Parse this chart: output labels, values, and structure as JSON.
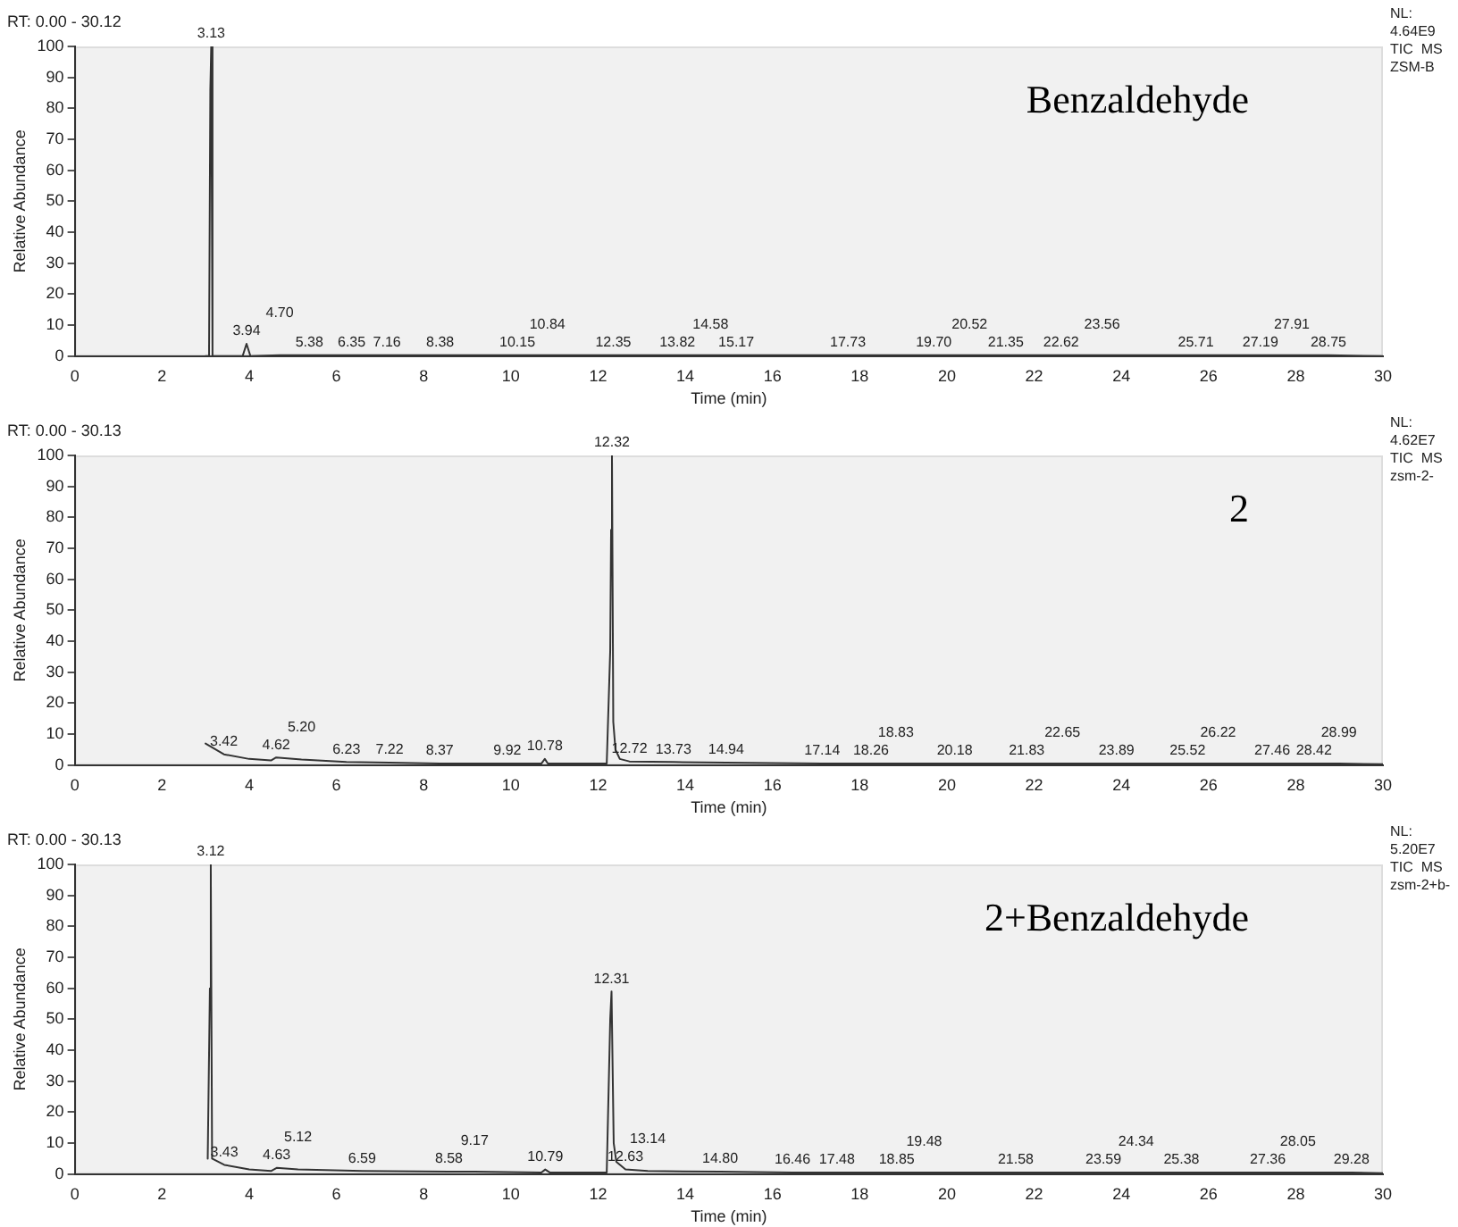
{
  "chart_data": [
    {
      "type": "line",
      "title": "Benzaldehyde",
      "xlabel": "Time (min)",
      "ylabel": "Relative Abundance",
      "xlim": [
        0,
        30
      ],
      "ylim": [
        0,
        100
      ],
      "xticks": [
        0,
        2,
        4,
        6,
        8,
        10,
        12,
        14,
        16,
        18,
        20,
        22,
        24,
        26,
        28,
        30
      ],
      "yticks": [
        0,
        10,
        20,
        30,
        40,
        50,
        60,
        70,
        80,
        90,
        100
      ],
      "grid": false,
      "legend": false,
      "marker": "none",
      "series": [
        {
          "color": "#333333",
          "x": [
            3.0,
            3.08,
            3.11,
            3.13,
            3.16,
            3.85,
            3.94,
            4.03,
            4.7,
            5.38,
            6.35,
            7.16,
            8.38,
            10.15,
            10.84,
            12.35,
            13.82,
            14.58,
            15.17,
            17.73,
            19.7,
            20.52,
            21.35,
            22.62,
            23.56,
            25.71,
            27.19,
            27.91,
            28.75,
            30
          ],
          "values": [
            0,
            0,
            86,
            100,
            0,
            0,
            4,
            0,
            0.3,
            0.3,
            0.3,
            0.3,
            0.3,
            0.3,
            0.3,
            0.3,
            0.3,
            0.3,
            0.3,
            0.3,
            0.3,
            0.3,
            0.3,
            0.3,
            0.3,
            0.3,
            0.3,
            0.3,
            0.3,
            0
          ]
        }
      ],
      "annotations": [
        "RT: 0.00 - 30.12",
        "NL:",
        "4.64E9",
        "TIC  MS",
        "ZSM-B",
        {
          "text": "3.13",
          "x": 3.13,
          "y": 100
        },
        {
          "text": "3.94",
          "x": 3.94,
          "y": 4
        },
        {
          "text": "4.70",
          "x": 4.7,
          "y": 0.3
        },
        {
          "text": "5.38",
          "x": 5.38,
          "y": 0.3
        },
        {
          "text": "6.35",
          "x": 6.35,
          "y": 0.3
        },
        {
          "text": "7.16",
          "x": 7.16,
          "y": 0.3
        },
        {
          "text": "8.38",
          "x": 8.38,
          "y": 0.3
        },
        {
          "text": "10.15",
          "x": 10.15,
          "y": 0.3
        },
        {
          "text": "10.84",
          "x": 10.84,
          "y": 0.3
        },
        {
          "text": "12.35",
          "x": 12.35,
          "y": 0.3
        },
        {
          "text": "13.82",
          "x": 13.82,
          "y": 0.3
        },
        {
          "text": "14.58",
          "x": 14.58,
          "y": 0.3
        },
        {
          "text": "15.17",
          "x": 15.17,
          "y": 0.3
        },
        {
          "text": "17.73",
          "x": 17.73,
          "y": 0.3
        },
        {
          "text": "19.70",
          "x": 19.7,
          "y": 0.3
        },
        {
          "text": "20.52",
          "x": 20.52,
          "y": 0.3
        },
        {
          "text": "21.35",
          "x": 21.35,
          "y": 0.3
        },
        {
          "text": "22.62",
          "x": 22.62,
          "y": 0.3
        },
        {
          "text": "23.56",
          "x": 23.56,
          "y": 0.3
        },
        {
          "text": "25.71",
          "x": 25.71,
          "y": 0.3
        },
        {
          "text": "27.19",
          "x": 27.19,
          "y": 0.3
        },
        {
          "text": "27.91",
          "x": 27.91,
          "y": 0.3
        },
        {
          "text": "28.75",
          "x": 28.75,
          "y": 0.3
        }
      ]
    },
    {
      "type": "line",
      "title": "2",
      "xlabel": "Time (min)",
      "ylabel": "Relative Abundance",
      "xlim": [
        0,
        30
      ],
      "ylim": [
        0,
        100
      ],
      "xticks": [
        0,
        2,
        4,
        6,
        8,
        10,
        12,
        14,
        16,
        18,
        20,
        22,
        24,
        26,
        28,
        30
      ],
      "yticks": [
        0,
        10,
        20,
        30,
        40,
        50,
        60,
        70,
        80,
        90,
        100
      ],
      "grid": false,
      "legend": false,
      "marker": "none",
      "series": [
        {
          "color": "#333333",
          "x": [
            3.0,
            3.42,
            4.0,
            4.5,
            4.62,
            5.2,
            6.23,
            7.22,
            8.37,
            9.92,
            10.7,
            10.78,
            10.85,
            12.2,
            12.28,
            12.3,
            12.32,
            12.35,
            12.4,
            12.5,
            12.72,
            13.73,
            14.94,
            17.14,
            18.26,
            18.83,
            20.18,
            21.83,
            22.65,
            23.89,
            25.52,
            26.22,
            27.46,
            28.42,
            28.99,
            30
          ],
          "values": [
            7,
            3.5,
            2,
            1.5,
            2.5,
            1.8,
            1,
            0.8,
            0.5,
            0.5,
            0.5,
            2,
            0.5,
            0.5,
            37,
            76,
            100,
            14,
            5,
            2,
            1.2,
            1,
            0.8,
            0.5,
            0.5,
            0.5,
            0.5,
            0.5,
            0.5,
            0.5,
            0.5,
            0.5,
            0.5,
            0.5,
            0.5,
            0.3
          ]
        }
      ],
      "annotations": [
        "RT: 0.00 - 30.13",
        "NL:",
        "4.62E7",
        "TIC  MS",
        "zsm-2-",
        {
          "text": "12.32",
          "x": 12.32,
          "y": 100
        },
        {
          "text": "3.42",
          "x": 3.42,
          "y": 3.5
        },
        {
          "text": "4.62",
          "x": 4.62,
          "y": 2.5
        },
        {
          "text": "5.20",
          "x": 5.2,
          "y": 1.8
        },
        {
          "text": "6.23",
          "x": 6.23,
          "y": 1
        },
        {
          "text": "7.22",
          "x": 7.22,
          "y": 0.8
        },
        {
          "text": "8.37",
          "x": 8.37,
          "y": 0.5
        },
        {
          "text": "9.92",
          "x": 9.92,
          "y": 0.5
        },
        {
          "text": "10.78",
          "x": 10.78,
          "y": 2
        },
        {
          "text": "12.72",
          "x": 12.72,
          "y": 1.2
        },
        {
          "text": "13.73",
          "x": 13.73,
          "y": 1
        },
        {
          "text": "14.94",
          "x": 14.94,
          "y": 0.8
        },
        {
          "text": "17.14",
          "x": 17.14,
          "y": 0.5
        },
        {
          "text": "18.26",
          "x": 18.26,
          "y": 0.5
        },
        {
          "text": "18.83",
          "x": 18.83,
          "y": 0.5
        },
        {
          "text": "20.18",
          "x": 20.18,
          "y": 0.5
        },
        {
          "text": "21.83",
          "x": 21.83,
          "y": 0.5
        },
        {
          "text": "22.65",
          "x": 22.65,
          "y": 0.5
        },
        {
          "text": "23.89",
          "x": 23.89,
          "y": 0.5
        },
        {
          "text": "25.52",
          "x": 25.52,
          "y": 0.5
        },
        {
          "text": "26.22",
          "x": 26.22,
          "y": 0.5
        },
        {
          "text": "27.46",
          "x": 27.46,
          "y": 0.5
        },
        {
          "text": "28.42",
          "x": 28.42,
          "y": 0.5
        },
        {
          "text": "28.99",
          "x": 28.99,
          "y": 0.5
        }
      ]
    },
    {
      "type": "line",
      "title": "2+Benzaldehyde",
      "xlabel": "Time (min)",
      "ylabel": "Relative Abundance",
      "xlim": [
        0,
        30
      ],
      "ylim": [
        0,
        100
      ],
      "xticks": [
        0,
        2,
        4,
        6,
        8,
        10,
        12,
        14,
        16,
        18,
        20,
        22,
        24,
        26,
        28,
        30
      ],
      "yticks": [
        0,
        10,
        20,
        30,
        40,
        50,
        60,
        70,
        80,
        90,
        100
      ],
      "grid": false,
      "legend": false,
      "marker": "none",
      "series": [
        {
          "color": "#333333",
          "x": [
            3.05,
            3.1,
            3.12,
            3.15,
            3.43,
            4.0,
            4.5,
            4.63,
            5.12,
            6.59,
            8.58,
            9.17,
            10.7,
            10.79,
            10.9,
            12.2,
            12.28,
            12.31,
            12.36,
            12.42,
            12.63,
            13.14,
            14.8,
            16.46,
            17.48,
            18.85,
            19.48,
            21.58,
            23.59,
            24.34,
            25.38,
            27.36,
            28.05,
            29.28,
            30
          ],
          "values": [
            5,
            60,
            100,
            5,
            3,
            1.5,
            1,
            2,
            1.5,
            1,
            0.8,
            0.8,
            0.5,
            1.5,
            0.5,
            0.5,
            50,
            59,
            10,
            4,
            1.5,
            1,
            0.8,
            0.5,
            0.5,
            0.5,
            0.5,
            0.5,
            0.5,
            0.5,
            0.5,
            0.5,
            0.5,
            0.5,
            0.3
          ]
        }
      ],
      "annotations": [
        "RT: 0.00 - 30.13",
        "NL:",
        "5.20E7",
        "TIC  MS",
        "zsm-2+b-",
        {
          "text": "3.12",
          "x": 3.12,
          "y": 100
        },
        {
          "text": "12.31",
          "x": 12.31,
          "y": 59
        },
        {
          "text": "3.43",
          "x": 3.43,
          "y": 3
        },
        {
          "text": "4.63",
          "x": 4.63,
          "y": 2
        },
        {
          "text": "5.12",
          "x": 5.12,
          "y": 1.5
        },
        {
          "text": "6.59",
          "x": 6.59,
          "y": 1
        },
        {
          "text": "8.58",
          "x": 8.58,
          "y": 0.8
        },
        {
          "text": "9.17",
          "x": 9.17,
          "y": 0.8
        },
        {
          "text": "10.79",
          "x": 10.79,
          "y": 1.5
        },
        {
          "text": "12.63",
          "x": 12.63,
          "y": 1.5
        },
        {
          "text": "13.14",
          "x": 13.14,
          "y": 1
        },
        {
          "text": "14.80",
          "x": 14.8,
          "y": 0.8
        },
        {
          "text": "16.46",
          "x": 16.46,
          "y": 0.5
        },
        {
          "text": "17.48",
          "x": 17.48,
          "y": 0.5
        },
        {
          "text": "18.85",
          "x": 18.85,
          "y": 0.5
        },
        {
          "text": "19.48",
          "x": 19.48,
          "y": 0.5
        },
        {
          "text": "21.58",
          "x": 21.58,
          "y": 0.5
        },
        {
          "text": "23.59",
          "x": 23.59,
          "y": 0.5
        },
        {
          "text": "24.34",
          "x": 24.34,
          "y": 0.5
        },
        {
          "text": "25.38",
          "x": 25.38,
          "y": 0.5
        },
        {
          "text": "27.36",
          "x": 27.36,
          "y": 0.5
        },
        {
          "text": "28.05",
          "x": 28.05,
          "y": 0.5
        },
        {
          "text": "29.28",
          "x": 29.28,
          "y": 0.5
        }
      ]
    }
  ]
}
